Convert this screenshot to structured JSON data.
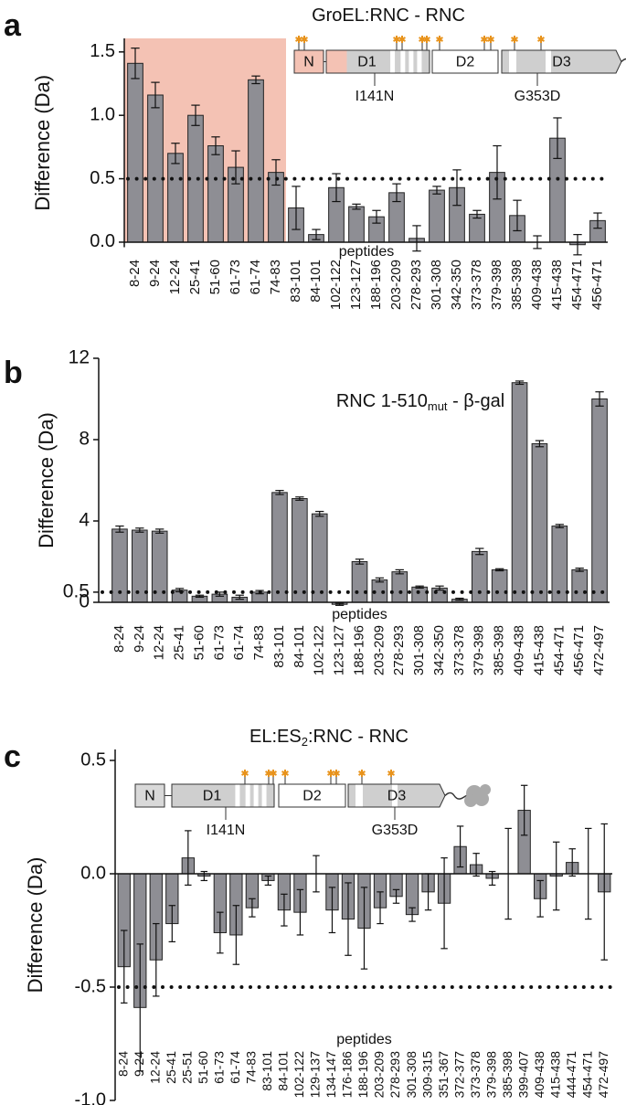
{
  "chart_data": [
    {
      "type": "bar",
      "panel_label": "a",
      "title": "GroEL:RNC -  RNC",
      "ylabel": "Difference (Da)",
      "xlabel": "peptides",
      "categories": [
        "8-24",
        "9-24",
        "12-24",
        "25-41",
        "51-60",
        "61-73",
        "61-74",
        "74-83",
        "83-101",
        "84-101",
        "102-122",
        "123-127",
        "188-196",
        "203-209",
        "278-293",
        "301-308",
        "342-350",
        "373-378",
        "379-398",
        "385-398",
        "409-438",
        "415-438",
        "454-471",
        "456-471"
      ],
      "values": [
        1.41,
        1.16,
        0.7,
        1.0,
        0.76,
        0.59,
        1.28,
        0.55,
        0.27,
        0.06,
        0.43,
        0.28,
        0.2,
        0.39,
        0.03,
        0.41,
        0.43,
        0.22,
        0.55,
        0.21,
        0.0,
        0.82,
        -0.02,
        0.17
      ],
      "errors": [
        0.12,
        0.1,
        0.08,
        0.08,
        0.07,
        0.13,
        0.03,
        0.1,
        0.17,
        0.04,
        0.11,
        0.02,
        0.05,
        0.07,
        0.1,
        0.03,
        0.14,
        0.03,
        0.21,
        0.12,
        0.05,
        0.16,
        0.08,
        0.06
      ],
      "color": "#8e8e94",
      "highlight_color": "#f4c2b4",
      "ylim": [
        -0.04,
        1.65
      ],
      "yticks": [
        {
          "value": 0,
          "label": "0.0"
        },
        0.5,
        {
          "value": 1,
          "label": "1.0"
        },
        1.5
      ],
      "threshold": 0.5,
      "annotations": {
        "domains": [
          "N",
          "D1",
          "D2",
          "D3"
        ],
        "mutations": [
          "I141N",
          "G353D"
        ]
      }
    },
    {
      "type": "bar",
      "panel_label": "b",
      "title": "RNC 1-510",
      "title_subscript": "mut",
      "title_suffix": " - β-gal",
      "ylabel": "Difference (Da)",
      "xlabel": "peptides",
      "categories": [
        "8-24",
        "9-24",
        "12-24",
        "25-41",
        "51-60",
        "61-73",
        "61-74",
        "74-83",
        "83-101",
        "84-101",
        "102-122",
        "123-127",
        "188-196",
        "203-209",
        "278-293",
        "301-308",
        "342-350",
        "373-378",
        "379-398",
        "385-398",
        "409-438",
        "415-438",
        "454-471",
        "456-471",
        "472-497"
      ],
      "values": [
        3.6,
        3.55,
        3.5,
        0.6,
        0.3,
        0.4,
        0.25,
        0.5,
        5.4,
        5.1,
        4.35,
        -0.1,
        2.0,
        1.1,
        1.5,
        0.75,
        0.7,
        0.15,
        2.5,
        1.6,
        10.8,
        7.8,
        3.75,
        1.6,
        10.0
      ],
      "errors": [
        0.15,
        0.1,
        0.1,
        0.08,
        0.05,
        0.1,
        0.1,
        0.08,
        0.1,
        0.08,
        0.12,
        0.05,
        0.12,
        0.1,
        0.1,
        0.05,
        0.1,
        0.05,
        0.15,
        0.05,
        0.08,
        0.15,
        0.08,
        0.08,
        0.35
      ],
      "color": "#8e8e94",
      "ylim": [
        0,
        12
      ],
      "yticks": [
        0,
        0.5,
        4,
        8,
        12
      ],
      "threshold": 0.5
    },
    {
      "type": "bar",
      "panel_label": "c",
      "title": "EL:ES",
      "title_subscript": "2",
      "title_suffix": ":RNC -  RNC",
      "ylabel": "Difference (Da)",
      "xlabel": "peptides",
      "categories": [
        "8-24",
        "9-24",
        "12-24",
        "25-41",
        "25-51",
        "51-60",
        "61-73",
        "61-74",
        "74-83",
        "83-101",
        "84-101",
        "102-122",
        "129-137",
        "134-147",
        "176-186",
        "188-196",
        "203-209",
        "278-293",
        "301-308",
        "309-315",
        "351-367",
        "372-377",
        "373-378",
        "379-398",
        "385-398",
        "399-407",
        "409-438",
        "415-438",
        "444-471",
        "454-471",
        "472-497"
      ],
      "values": [
        -0.41,
        -0.59,
        -0.38,
        -0.22,
        0.07,
        -0.01,
        -0.26,
        -0.27,
        -0.15,
        -0.03,
        -0.16,
        -0.17,
        0.0,
        -0.16,
        -0.2,
        -0.24,
        -0.15,
        -0.1,
        -0.18,
        -0.08,
        -0.13,
        0.12,
        0.04,
        -0.02,
        0.0,
        0.28,
        -0.11,
        -0.01,
        0.05,
        0.0,
        -0.08
      ],
      "errors": [
        0.16,
        0.28,
        0.16,
        0.08,
        0.12,
        0.02,
        0.09,
        0.13,
        0.04,
        0.02,
        0.07,
        0.1,
        0.08,
        0.1,
        0.16,
        0.18,
        0.07,
        0.03,
        0.03,
        0.08,
        0.2,
        0.09,
        0.05,
        0.03,
        0.2,
        0.11,
        0.08,
        0.15,
        0.06,
        0.2,
        0.3
      ],
      "color": "#8e8e94",
      "ylim": [
        -1,
        0.55
      ],
      "yticks": [
        {
          "value": -1,
          "label": "-1.0"
        },
        -0.5,
        {
          "value": 0,
          "label": "0.0"
        },
        0.5
      ],
      "threshold": -0.5,
      "annotations": {
        "domains": [
          "N",
          "D1",
          "D2",
          "D3"
        ],
        "mutations": [
          "I141N",
          "G353D"
        ]
      }
    }
  ]
}
